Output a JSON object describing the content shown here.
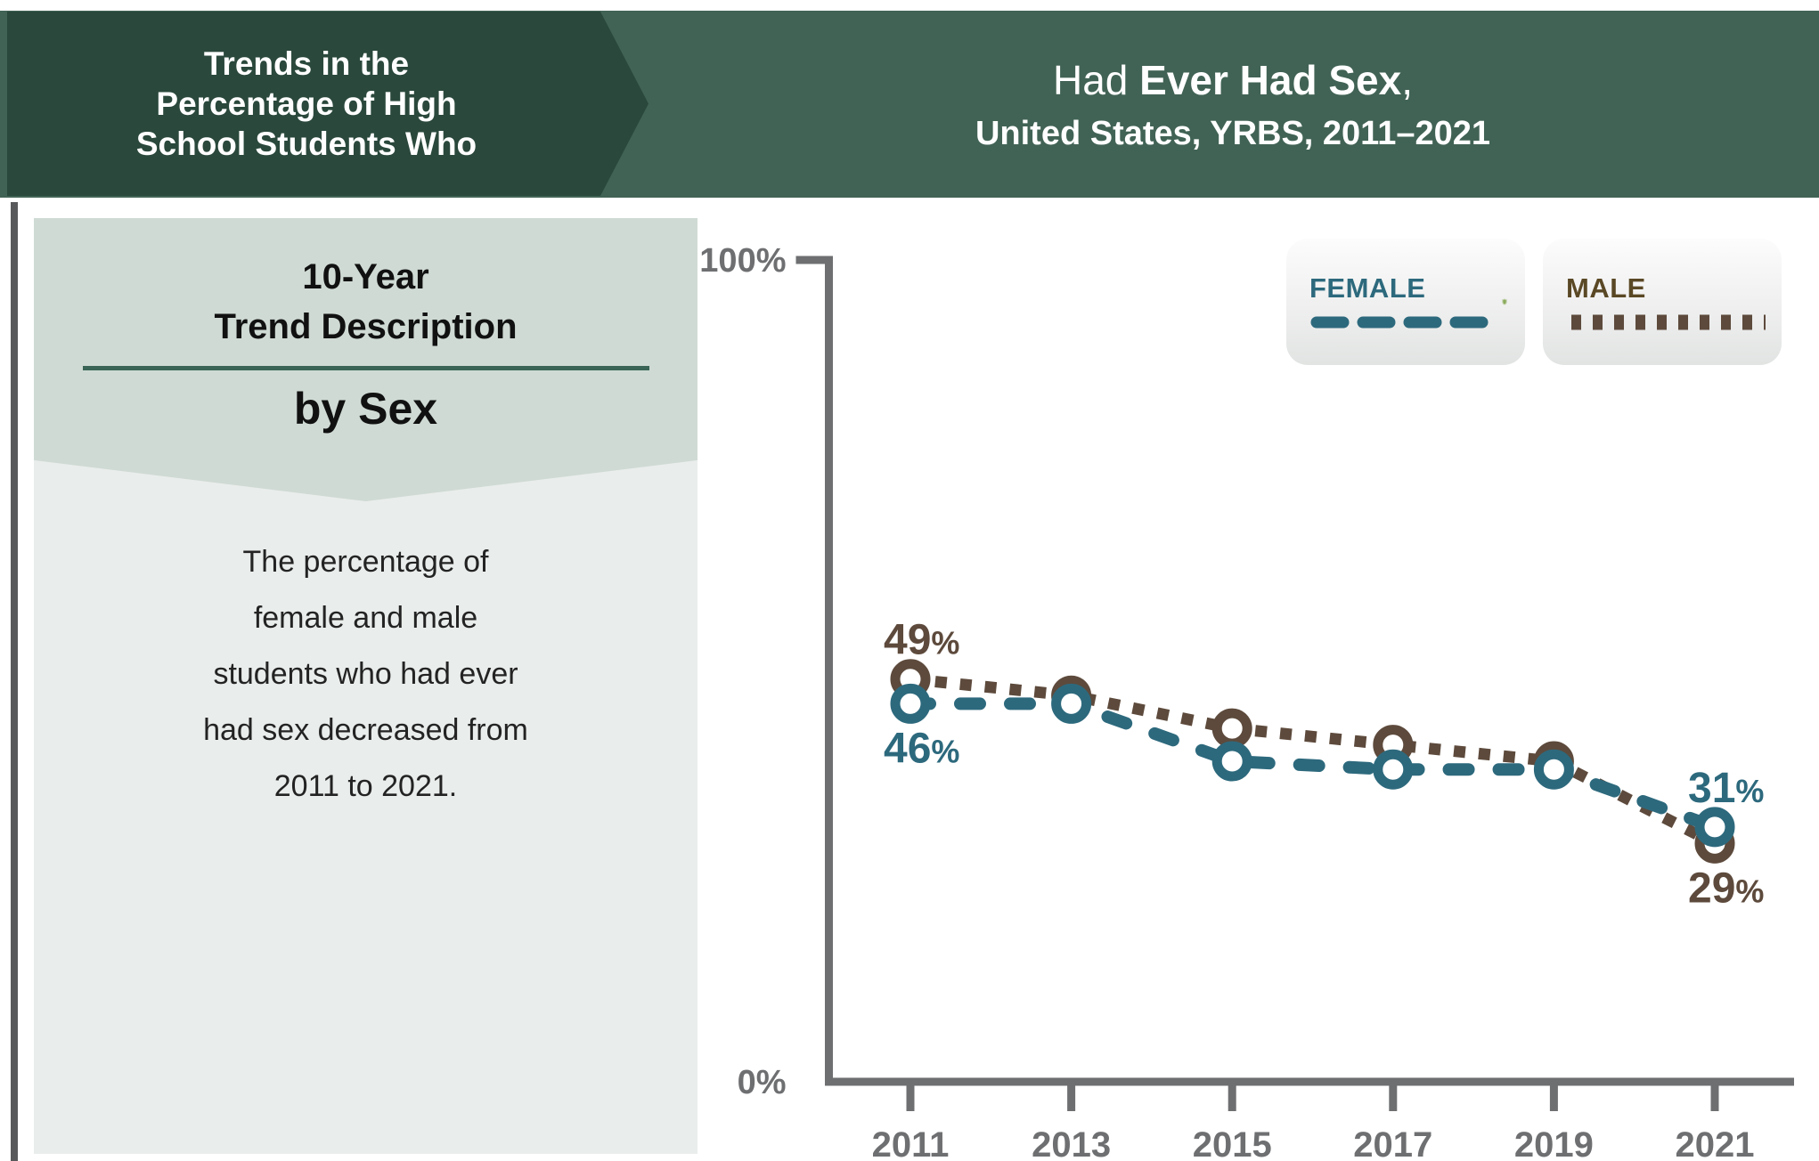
{
  "header": {
    "left_title_lines": [
      "Trends in the",
      "Percentage of High",
      "School Students Who"
    ],
    "right_title_prefix": "Had ",
    "right_title_bold": "Ever Had Sex",
    "right_title_suffix": ",",
    "right_subtitle": "United States, YRBS, 2011–2021"
  },
  "sidebar": {
    "heading_line1": "10-Year",
    "heading_line2": "Trend Description",
    "subheading": "by Sex",
    "description_lines": [
      "The percentage of",
      "female and male",
      "students who had ever",
      "had sex decreased from",
      "2011 to 2021."
    ]
  },
  "legend": [
    {
      "label": "FEMALE",
      "line_style": "dashed",
      "icon": "shield"
    },
    {
      "label": "MALE",
      "line_style": "dotted",
      "icon": "shield"
    }
  ],
  "chart_data": {
    "type": "line",
    "x": [
      "2011",
      "2013",
      "2015",
      "2017",
      "2019",
      "2021"
    ],
    "series": [
      {
        "name": "Female",
        "values": [
          46,
          46,
          39,
          38,
          38,
          31
        ],
        "color": "#2d697d",
        "dash": "dashed"
      },
      {
        "name": "Male",
        "values": [
          49,
          47,
          43,
          41,
          39,
          29
        ],
        "color": "#5d4a3c",
        "dash": "dotted"
      }
    ],
    "point_labels": [
      {
        "series": "Male",
        "xi": 0,
        "value": "49",
        "suffix": "%",
        "pos": "above"
      },
      {
        "series": "Female",
        "xi": 0,
        "value": "46",
        "suffix": "%",
        "pos": "below"
      },
      {
        "series": "Female",
        "xi": 5,
        "value": "31",
        "suffix": "%",
        "pos": "above"
      },
      {
        "series": "Male",
        "xi": 5,
        "value": "29",
        "suffix": "%",
        "pos": "below"
      }
    ],
    "ylim": [
      0,
      100
    ],
    "yticks": [
      "100%",
      "0%"
    ],
    "xlabel": "",
    "ylabel": "",
    "grid": false,
    "legend_position": "top-right"
  },
  "colors": {
    "band_green": "#416355",
    "chevron_green": "#2a483c",
    "panel_header": "#cfdad4",
    "panel_body": "#e9edeb",
    "rule_green": "#3a6456",
    "axis_gray": "#6e6f71",
    "female": "#2d697d",
    "male": "#5d4a3c",
    "male_label": "#5a4825",
    "shield_green": "#8aab5c",
    "left_border": "#58595b"
  }
}
